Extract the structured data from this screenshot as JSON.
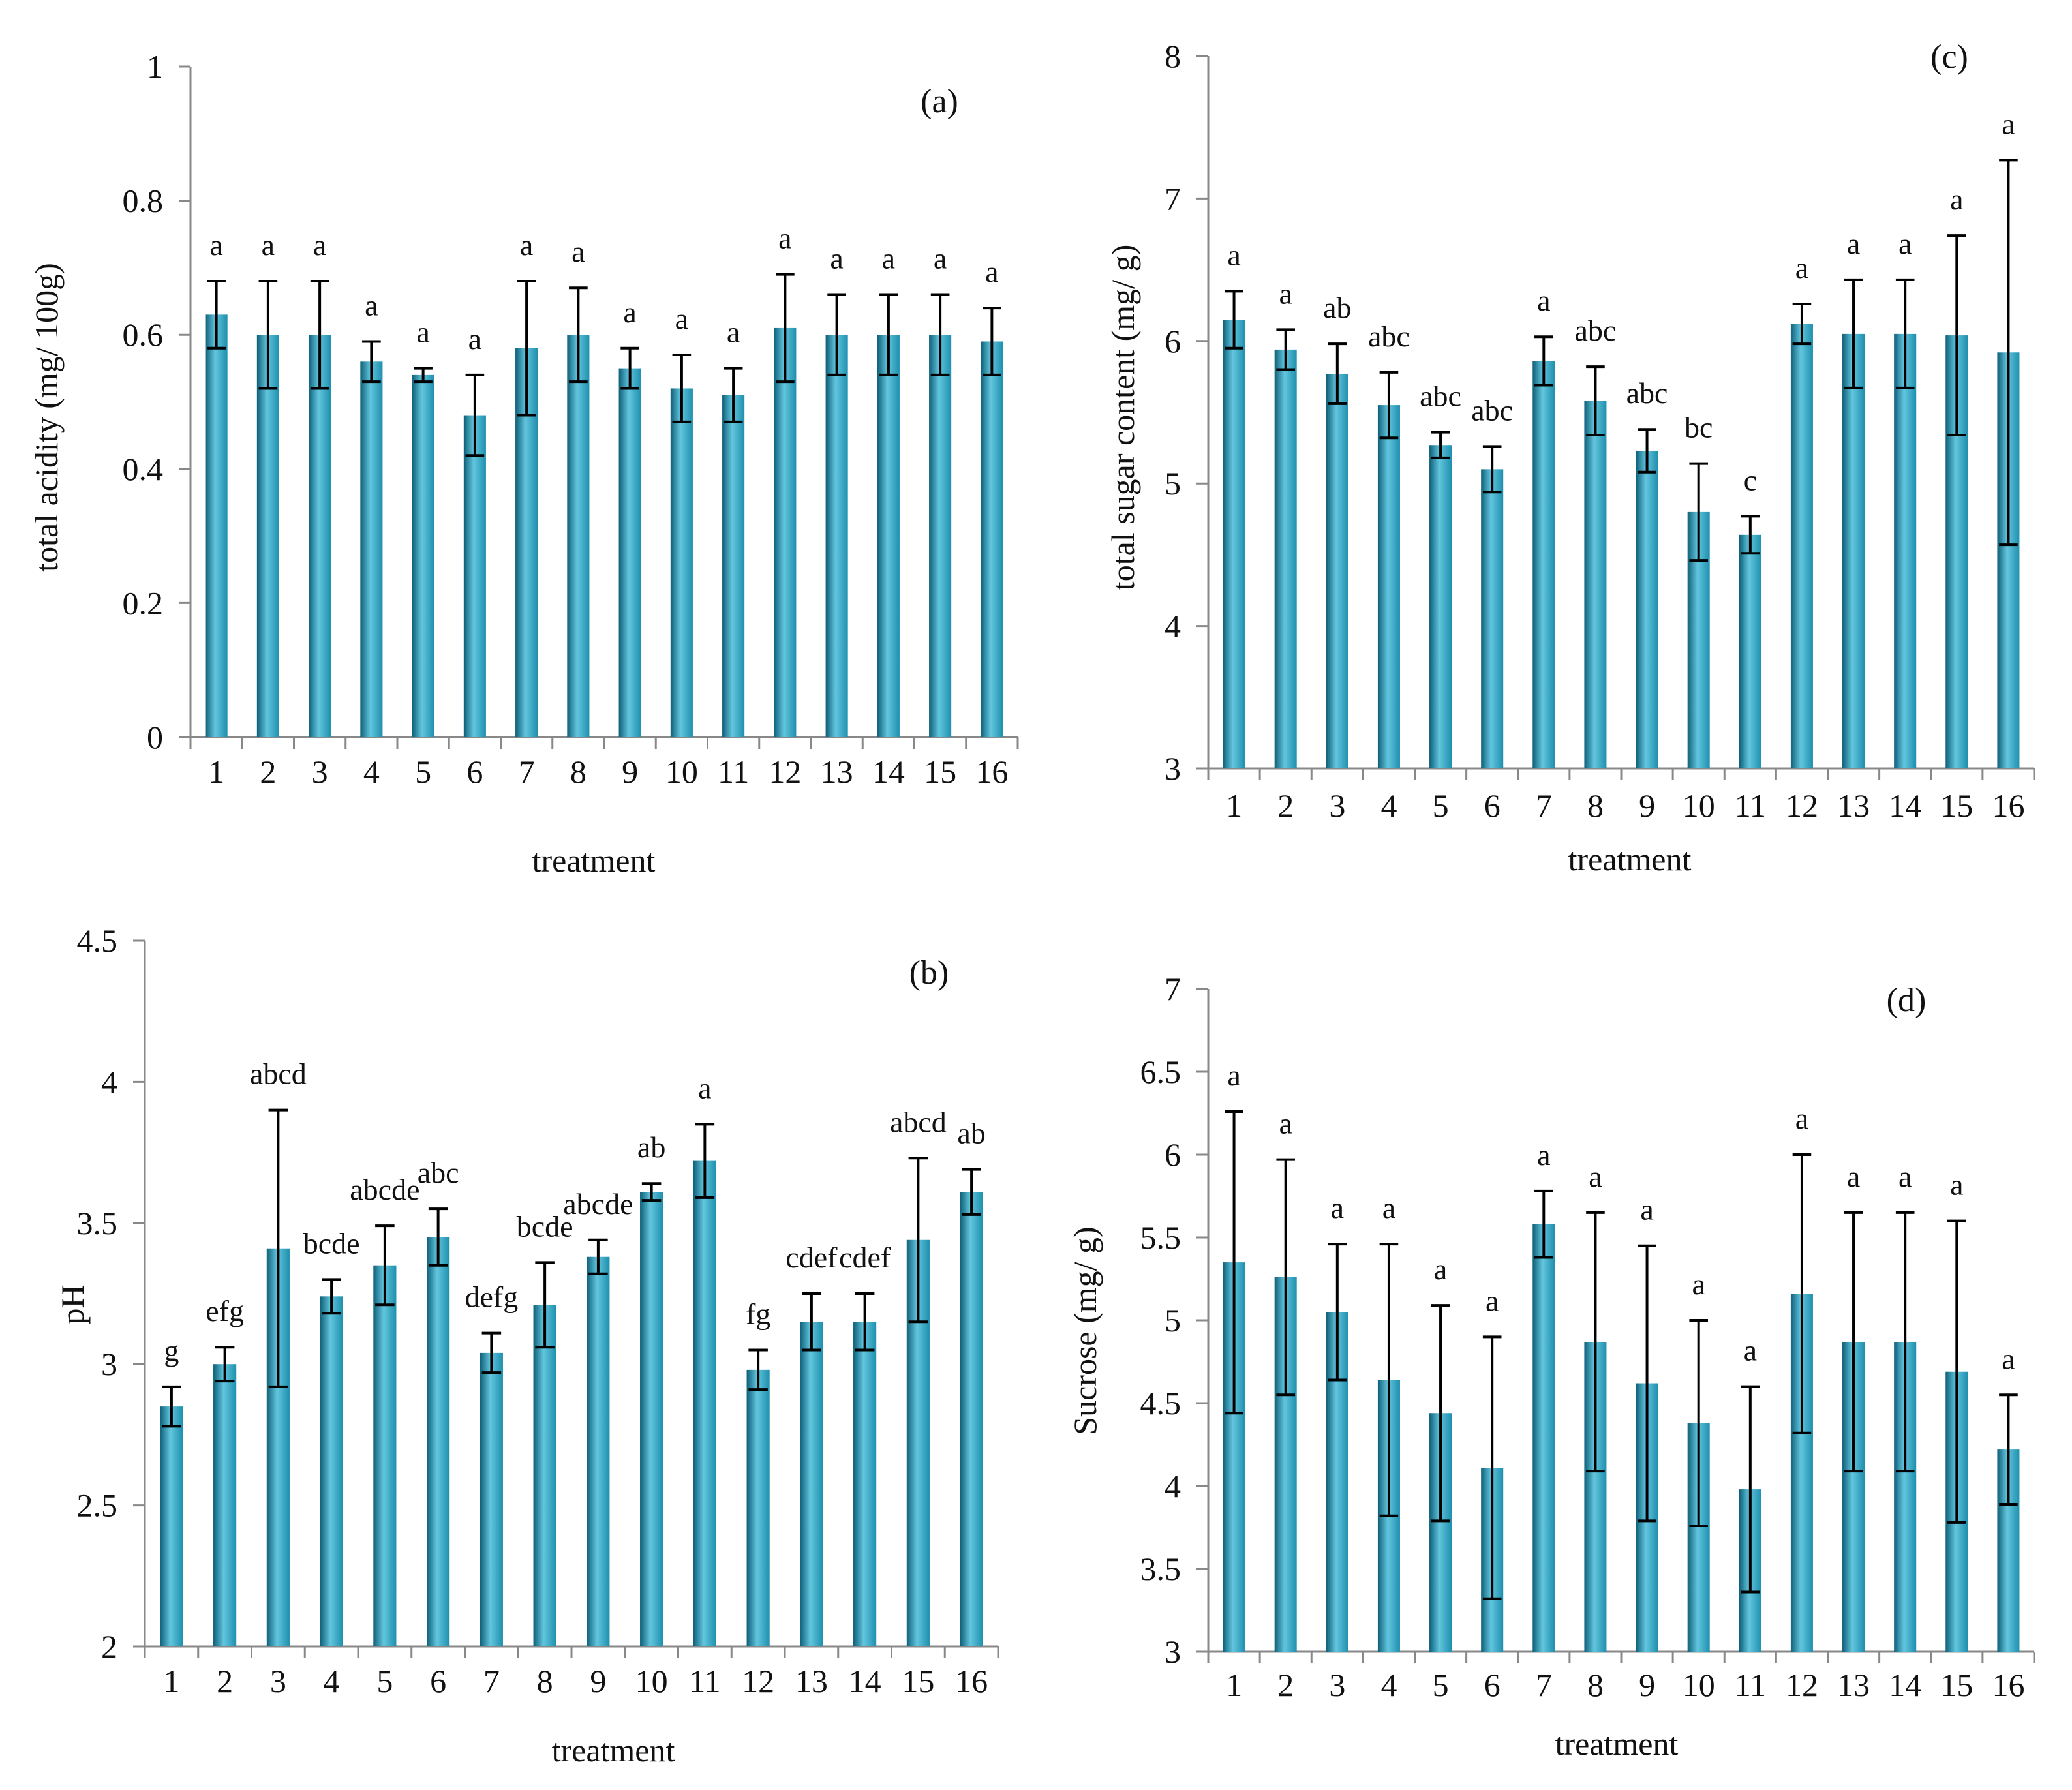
{
  "colors": {
    "bar_main": "#1e8fae",
    "bar_light": "#62c6de",
    "bar_dark": "#0e5f78",
    "axis": "#888888",
    "error": "#000000"
  },
  "chart_data": [
    {
      "id": "a",
      "type": "bar",
      "panel_label": "(a)",
      "title": "",
      "xlabel": "treatment",
      "ylabel": "total acidity (mg/ 100g)",
      "ylim": [
        0,
        1
      ],
      "ytick_values": [
        0,
        0.2,
        0.4,
        0.6,
        0.8,
        1
      ],
      "ytick_labels": [
        "0",
        "0.2",
        "0.4",
        "0.6",
        "0.8",
        "1"
      ],
      "categories": [
        "1",
        "2",
        "3",
        "4",
        "5",
        "6",
        "7",
        "8",
        "9",
        "10",
        "11",
        "12",
        "13",
        "14",
        "15",
        "16"
      ],
      "values": [
        0.63,
        0.6,
        0.6,
        0.56,
        0.54,
        0.48,
        0.58,
        0.6,
        0.55,
        0.52,
        0.51,
        0.61,
        0.6,
        0.6,
        0.6,
        0.59
      ],
      "errors": [
        0.05,
        0.08,
        0.08,
        0.03,
        0.01,
        0.06,
        0.1,
        0.07,
        0.03,
        0.05,
        0.04,
        0.08,
        0.06,
        0.06,
        0.06,
        0.05
      ],
      "significance": [
        "a",
        "a",
        "a",
        "a",
        "a",
        "a",
        "a",
        "a",
        "a",
        "a",
        "a",
        "a",
        "a",
        "a",
        "a",
        "a"
      ],
      "grid": false
    },
    {
      "id": "c",
      "type": "bar",
      "panel_label": "(c)",
      "title": "",
      "xlabel": "treatment",
      "ylabel": "total sugar content (mg/ g)",
      "ylim": [
        3,
        8
      ],
      "ytick_values": [
        3,
        4,
        5,
        6,
        7,
        8
      ],
      "ytick_labels": [
        "3",
        "4",
        "5",
        "6",
        "7",
        "8"
      ],
      "categories": [
        "1",
        "2",
        "3",
        "4",
        "5",
        "6",
        "7",
        "8",
        "9",
        "10",
        "11",
        "12",
        "13",
        "14",
        "15",
        "16"
      ],
      "values": [
        6.15,
        5.94,
        5.77,
        5.55,
        5.27,
        5.1,
        5.86,
        5.58,
        5.23,
        4.8,
        4.64,
        6.12,
        6.05,
        6.05,
        6.04,
        5.92
      ],
      "errors": [
        0.2,
        0.14,
        0.21,
        0.23,
        0.09,
        0.16,
        0.17,
        0.24,
        0.15,
        0.34,
        0.13,
        0.14,
        0.38,
        0.38,
        0.7,
        1.35
      ],
      "significance": [
        "a",
        "a",
        "ab",
        "abc",
        "abc",
        "abc",
        "a",
        "abc",
        "abc",
        "bc",
        "c",
        "a",
        "a",
        "a",
        "a",
        "a"
      ],
      "grid": false
    },
    {
      "id": "b",
      "type": "bar",
      "panel_label": "(b)",
      "title": "",
      "xlabel": "treatment",
      "ylabel": "pH",
      "ylim": [
        2,
        4.5
      ],
      "ytick_values": [
        2,
        2.5,
        3,
        3.5,
        4,
        4.5
      ],
      "ytick_labels": [
        "2",
        "2.5",
        "3",
        "3.5",
        "4",
        "4.5"
      ],
      "categories": [
        "1",
        "2",
        "3",
        "4",
        "5",
        "6",
        "7",
        "8",
        "9",
        "10",
        "11",
        "12",
        "13",
        "14",
        "15",
        "16"
      ],
      "values": [
        2.85,
        3.0,
        3.41,
        3.24,
        3.35,
        3.45,
        3.04,
        3.21,
        3.38,
        3.61,
        3.72,
        2.98,
        3.15,
        3.15,
        3.44,
        3.61
      ],
      "errors": [
        0.07,
        0.06,
        0.49,
        0.06,
        0.14,
        0.1,
        0.07,
        0.15,
        0.06,
        0.03,
        0.13,
        0.07,
        0.1,
        0.1,
        0.29,
        0.08
      ],
      "significance": [
        "g",
        "efg",
        "abcd",
        "bcde",
        "abcde",
        "abc",
        "defg",
        "bcde",
        "abcde",
        "ab",
        "a",
        "fg",
        "cdef",
        "cdef",
        "abcd",
        "ab"
      ],
      "grid": false
    },
    {
      "id": "d",
      "type": "bar",
      "panel_label": "(d)",
      "title": "",
      "xlabel": "treatment",
      "ylabel": "Sucrose (mg/ g)",
      "ylim": [
        3,
        7
      ],
      "ytick_values": [
        3,
        3.5,
        4,
        4.5,
        5,
        5.5,
        6,
        6.5,
        7
      ],
      "ytick_labels": [
        "3",
        "3.5",
        "4",
        "4.5",
        "5",
        "5.5",
        "6",
        "6.5",
        "7"
      ],
      "categories": [
        "1",
        "2",
        "3",
        "4",
        "5",
        "6",
        "7",
        "8",
        "9",
        "10",
        "11",
        "12",
        "13",
        "14",
        "15",
        "16"
      ],
      "values": [
        5.35,
        5.26,
        5.05,
        4.64,
        4.44,
        4.11,
        5.58,
        4.87,
        4.62,
        4.38,
        3.98,
        5.16,
        4.87,
        4.87,
        4.69,
        4.22
      ],
      "errors": [
        0.91,
        0.71,
        0.41,
        0.82,
        0.65,
        0.79,
        0.2,
        0.78,
        0.83,
        0.62,
        0.62,
        0.84,
        0.78,
        0.78,
        0.91,
        0.33
      ],
      "significance": [
        "a",
        "a",
        "a",
        "a",
        "a",
        "a",
        "a",
        "a",
        "a",
        "a",
        "a",
        "a",
        "a",
        "a",
        "a",
        "a"
      ],
      "grid": false
    }
  ]
}
